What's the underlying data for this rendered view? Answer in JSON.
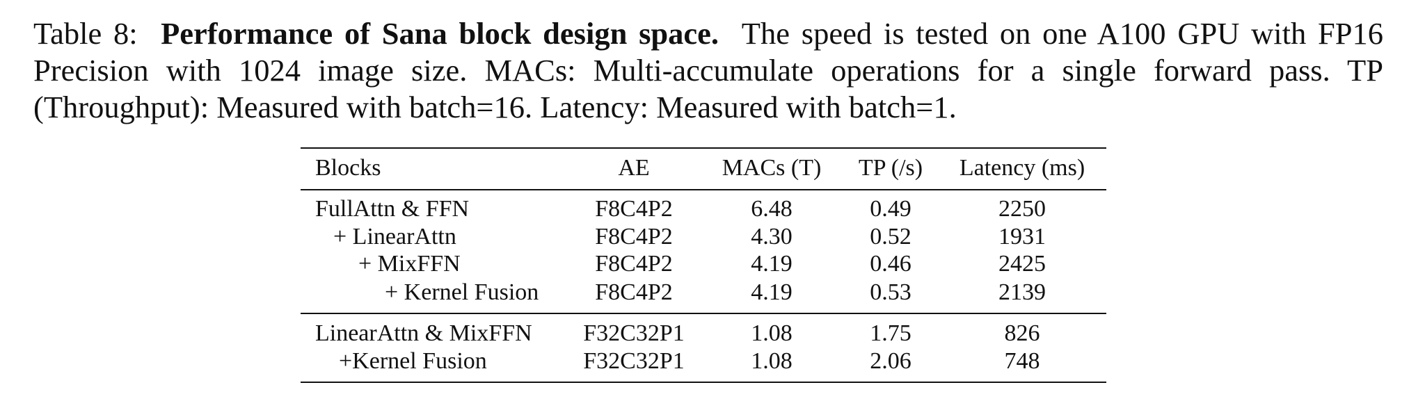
{
  "caption": {
    "label": "Table 8:",
    "bold": "Performance of Sana block design space.",
    "text": "The speed is tested on one A100 GPU with FP16 Precision with 1024 image size. MACs: Multi-accumulate operations for a single forward pass. TP (Throughput): Measured with batch=16. Latency: Measured with batch=1."
  },
  "table": {
    "header": [
      "Blocks",
      "AE",
      "MACs (T)",
      "TP (/s)",
      "Latency (ms)"
    ],
    "groups": [
      [
        [
          "FullAttn & FFN",
          "F8C4P2",
          "6.48",
          "0.49",
          "2250"
        ],
        [
          "+ LinearAttn",
          "F8C4P2",
          "4.30",
          "0.52",
          "1931"
        ],
        [
          "+ MixFFN",
          "F8C4P2",
          "4.19",
          "0.46",
          "2425"
        ],
        [
          "+ Kernel Fusion",
          "F8C4P2",
          "4.19",
          "0.53",
          "2139"
        ]
      ],
      [
        [
          "LinearAttn & MixFFN",
          "F32C32P1",
          "1.08",
          "1.75",
          "826"
        ],
        [
          "+Kernel Fusion",
          "F32C32P1",
          "1.08",
          "2.06",
          "748"
        ]
      ]
    ]
  }
}
